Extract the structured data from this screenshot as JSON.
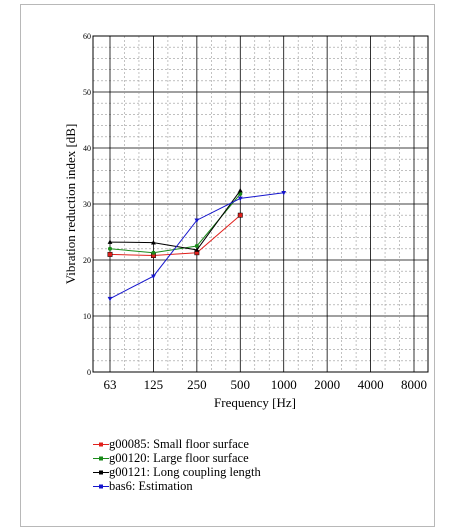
{
  "chart_data": {
    "type": "line",
    "title": "",
    "xlabel": "Frequency [Hz]",
    "ylabel": "Vibration reduction index [dB]",
    "ylim": [
      0,
      60
    ],
    "yticks": [
      "0",
      "10",
      "20",
      "30",
      "40",
      "50",
      "60"
    ],
    "x_scale": "log (octave bands)",
    "categories": [
      "63",
      "125",
      "250",
      "500",
      "1000",
      "2000",
      "4000",
      "8000"
    ],
    "grid": true,
    "legend_position": "below",
    "series": [
      {
        "name": "g00085: Small floor surface",
        "color": "#e0201c",
        "marker": "square",
        "values": [
          21.0,
          20.8,
          21.3,
          28.0,
          null,
          null,
          null,
          null
        ]
      },
      {
        "name": "g00120: Large floor surface",
        "color": "#1a8a1a",
        "marker": "circle",
        "values": [
          22.0,
          21.3,
          22.5,
          31.8,
          null,
          null,
          null,
          null
        ]
      },
      {
        "name": "g00121: Long coupling length",
        "color": "#000000",
        "marker": "triangle",
        "values": [
          23.2,
          23.1,
          21.8,
          32.4,
          null,
          null,
          null,
          null
        ]
      },
      {
        "name": "bas6: Estimation",
        "color": "#1515cc",
        "marker": "triangle-down",
        "values": [
          13.1,
          17.1,
          27.1,
          31.0,
          32.0,
          null,
          null,
          null
        ]
      }
    ]
  }
}
